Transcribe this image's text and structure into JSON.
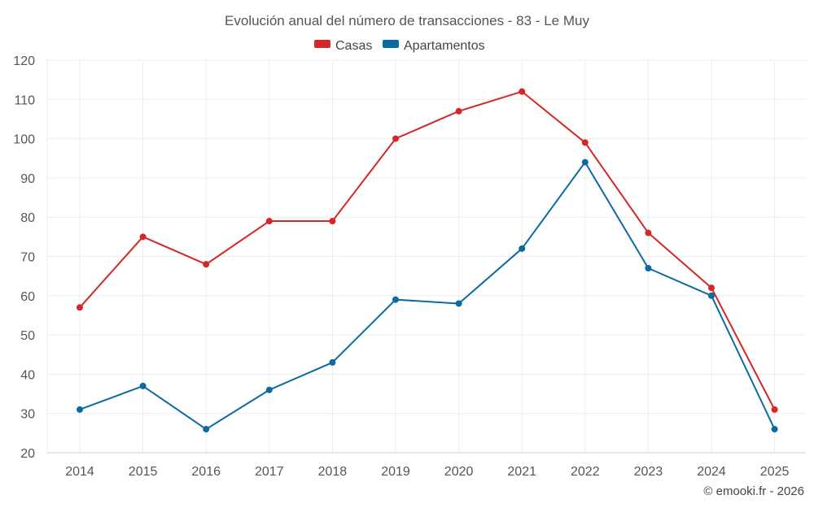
{
  "chart_data": {
    "type": "line",
    "title": "Evolución anual del número de transacciones - 83 - Le Muy",
    "categories": [
      "2014",
      "2015",
      "2016",
      "2017",
      "2018",
      "2019",
      "2020",
      "2021",
      "2022",
      "2023",
      "2024",
      "2025"
    ],
    "series": [
      {
        "name": "Casas",
        "color": "#d62728",
        "values": [
          57,
          75,
          68,
          79,
          79,
          100,
          107,
          112,
          99,
          76,
          62,
          31
        ]
      },
      {
        "name": "Apartamentos",
        "color": "#0b6aa2",
        "values": [
          31,
          37,
          26,
          36,
          43,
          59,
          58,
          72,
          94,
          67,
          60,
          26
        ]
      }
    ],
    "ylim": [
      20,
      120
    ],
    "yticks": [
      20,
      30,
      40,
      50,
      60,
      70,
      80,
      90,
      100,
      110,
      120
    ],
    "grid": true,
    "legend_position": "top-center",
    "xlabel": "",
    "ylabel": ""
  },
  "credit": "© emooki.fr - 2026"
}
